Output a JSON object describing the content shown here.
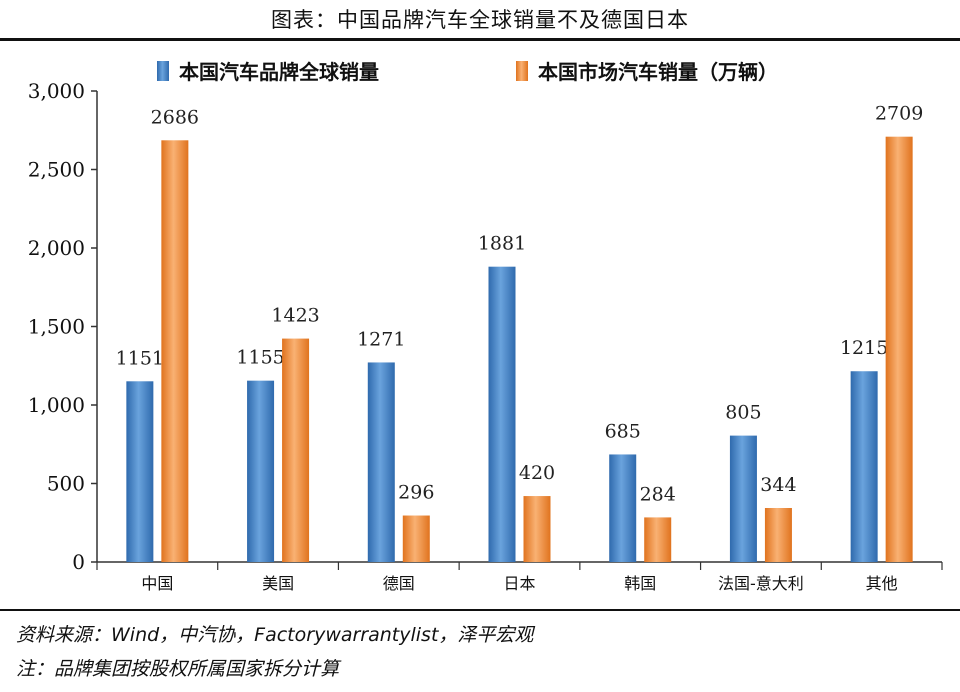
{
  "title": "图表：中国品牌汽车全球销量不及德国日本",
  "source": "资料来源：Wind，中汽协，Factorywarrantylist，泽平宏观",
  "note": "注：品牌集团按股权所属国家拆分计算",
  "chart_data": {
    "type": "bar",
    "categories": [
      "中国",
      "美国",
      "德国",
      "日本",
      "韩国",
      "法国-意大利",
      "其他"
    ],
    "series": [
      {
        "name": "本国汽车品牌全球销量",
        "color": "#4f86c6",
        "values": [
          1151,
          1155,
          1271,
          1881,
          685,
          805,
          1215
        ]
      },
      {
        "name": "本国市场汽车销量（万辆）",
        "color": "#f28c3a",
        "values": [
          2686,
          1423,
          296,
          420,
          284,
          344,
          2709
        ]
      }
    ],
    "ylim": [
      0,
      3000
    ],
    "yticks": [
      0,
      500,
      1000,
      1500,
      2000,
      2500,
      3000
    ],
    "ytick_labels": [
      "0",
      "500",
      "1,000",
      "1,500",
      "2,000",
      "2,500",
      "3,000"
    ],
    "legend_position": "top",
    "grid": false
  }
}
